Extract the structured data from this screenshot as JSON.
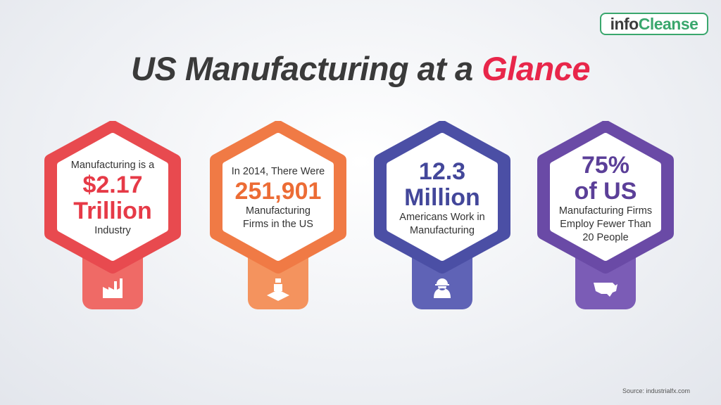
{
  "logo": {
    "info": "info",
    "cleanse": "Cleanse"
  },
  "title": {
    "main": "US Manufacturing at a",
    "highlight": "Glance"
  },
  "cards": [
    {
      "pre": [
        "Manufacturing is a"
      ],
      "figure": [
        "$2.17",
        "Trillion"
      ],
      "post": [
        "Industry"
      ]
    },
    {
      "pre": [
        "In 2014, There Were"
      ],
      "figure": [
        "251,901"
      ],
      "post": [
        "Manufacturing",
        "Firms in the US"
      ]
    },
    {
      "figure": [
        "12.3",
        "Million"
      ],
      "post": [
        "Americans Work in",
        "Manufacturing"
      ]
    },
    {
      "figure": [
        "75%",
        "of US"
      ],
      "post": [
        "Manufacturing Firms",
        "Employ Fewer Than",
        "20 People"
      ]
    }
  ],
  "source": "Source: industrialfx.com"
}
